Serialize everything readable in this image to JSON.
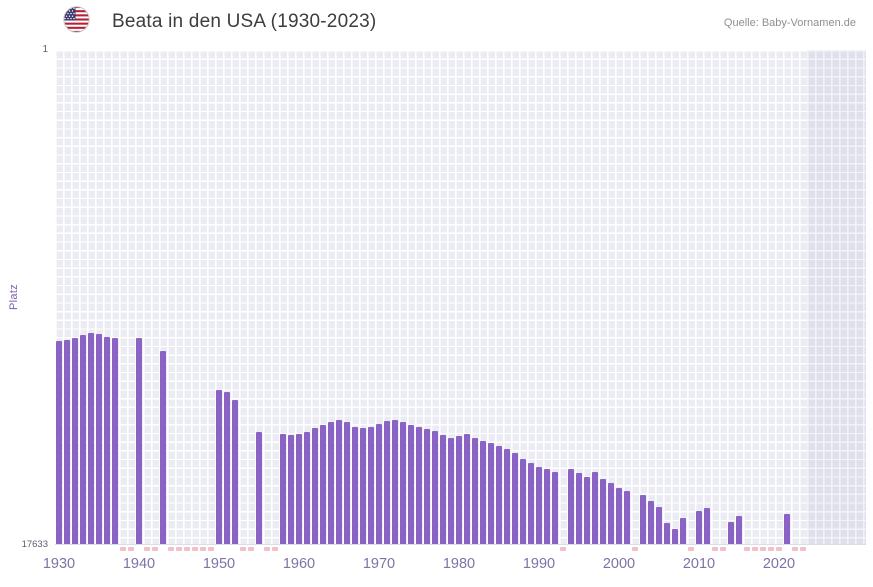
{
  "header": {
    "title": "Beata in den USA (1930-2023)",
    "source": "Quelle: Baby-Vornamen.de",
    "flag_icon": "us-flag"
  },
  "chart_data": {
    "type": "bar",
    "title": "Beata in den USA (1930-2023)",
    "xlabel": "",
    "ylabel": "Platz",
    "y_axis": {
      "top_label": "1",
      "bottom_label": "17633",
      "min": 1,
      "max": 17633,
      "inverted": true
    },
    "x_ticks": [
      1930,
      1940,
      1950,
      1960,
      1970,
      1980,
      1990,
      2000,
      2010,
      2020
    ],
    "start_year": 1930,
    "end_year": 2023,
    "legend": "none",
    "grid": true,
    "ranks": [
      10400,
      10350,
      10300,
      10200,
      10100,
      10150,
      10250,
      10300,
      null,
      null,
      10300,
      null,
      null,
      10750,
      null,
      null,
      null,
      null,
      null,
      null,
      12150,
      12200,
      12500,
      null,
      null,
      13650,
      null,
      null,
      13700,
      13750,
      13700,
      13650,
      13500,
      13400,
      13300,
      13200,
      13300,
      13450,
      13500,
      13450,
      13350,
      13250,
      13200,
      13300,
      13400,
      13450,
      13550,
      13600,
      13750,
      13850,
      13800,
      13700,
      13850,
      13950,
      14050,
      14150,
      14250,
      14400,
      14600,
      14750,
      14900,
      14950,
      15050,
      null,
      14950,
      15100,
      15250,
      15050,
      15300,
      15450,
      15650,
      15750,
      null,
      15900,
      16100,
      16300,
      16900,
      17100,
      16700,
      null,
      16450,
      16350,
      null,
      null,
      16850,
      16650,
      null,
      null,
      null,
      null,
      null,
      16550,
      null,
      null
    ],
    "colors": {
      "bar": "#8b63c5",
      "missing_marker": "#f2c0c8",
      "plot_background": "#ebebf4",
      "future_band": "rgba(92,92,143,0.07)",
      "x_tick_text": "#7f72a8"
    }
  }
}
